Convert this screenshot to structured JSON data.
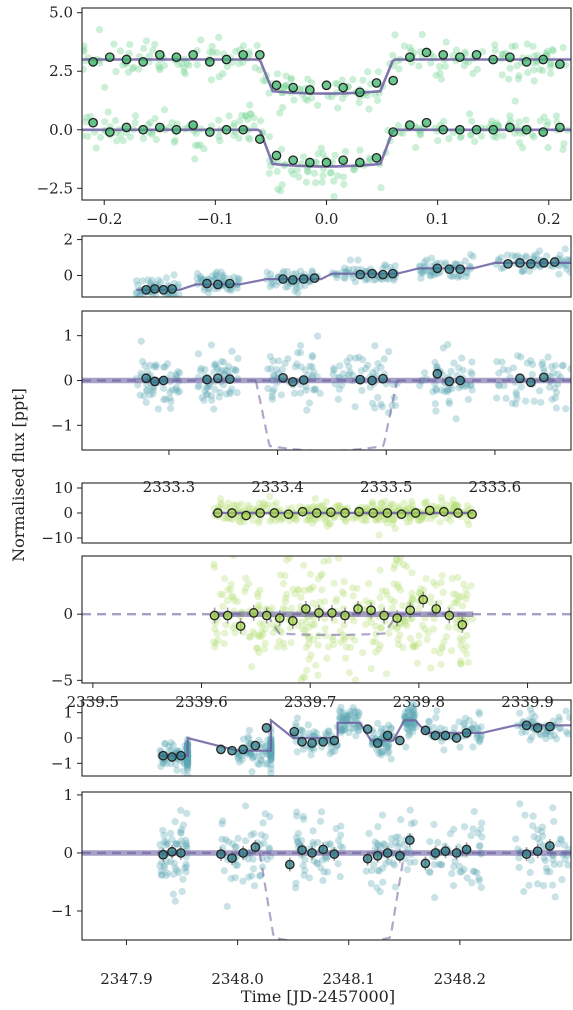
{
  "labels": {
    "ylabel": "Normalised flux [ppt]",
    "xlabel": "Time [JD-2457000]"
  },
  "colors": {
    "green_pts": "#7fd69a",
    "teal_pts": "#5ba7b4",
    "lime_pts": "#b8e07a",
    "model": "#6b5fa0",
    "binned_edge": "#222222",
    "green_binned": "#3cb46c",
    "teal_binned": "#2f7c88",
    "lime_binned": "#a6d64c"
  },
  "chart_data": [
    {
      "type": "scatter",
      "panel": "phase-folded",
      "xlim": [
        -0.22,
        0.22
      ],
      "ylim": [
        -3.0,
        5.2
      ],
      "xticks": [
        "−0.2",
        "−0.1",
        "0.0",
        "0.1",
        "0.2"
      ],
      "xtick_values": [
        -0.2,
        -0.1,
        0.0,
        0.1,
        0.2
      ],
      "yticks": [
        "−2.5",
        "0.0",
        "2.5",
        "5.0"
      ],
      "ytick_values": [
        -2.5,
        0.0,
        2.5,
        5.0
      ],
      "series": [
        {
          "offset": 3.0,
          "depth": 1.3,
          "transit_ingress": -0.06,
          "transit_egress": 0.06,
          "binned_x": [
            -0.21,
            -0.195,
            -0.18,
            -0.165,
            -0.15,
            -0.135,
            -0.12,
            -0.105,
            -0.09,
            -0.075,
            -0.06,
            -0.045,
            -0.03,
            -0.015,
            0.0,
            0.015,
            0.03,
            0.045,
            0.06,
            0.075,
            0.09,
            0.105,
            0.12,
            0.135,
            0.15,
            0.165,
            0.18,
            0.195,
            0.21
          ],
          "binned_y": [
            2.9,
            3.1,
            3.0,
            2.9,
            3.2,
            3.1,
            3.2,
            2.9,
            3.0,
            3.2,
            3.2,
            1.9,
            1.8,
            1.7,
            1.9,
            1.8,
            1.6,
            2.0,
            2.1,
            3.1,
            3.3,
            3.2,
            3.1,
            3.2,
            3.0,
            3.1,
            2.9,
            3.0,
            2.8
          ]
        },
        {
          "offset": 0.0,
          "depth": 1.4,
          "transit_ingress": -0.06,
          "transit_egress": 0.06,
          "binned_x": [
            -0.21,
            -0.195,
            -0.18,
            -0.165,
            -0.15,
            -0.135,
            -0.12,
            -0.105,
            -0.09,
            -0.075,
            -0.06,
            -0.045,
            -0.03,
            -0.015,
            0.0,
            0.015,
            0.03,
            0.045,
            0.06,
            0.075,
            0.09,
            0.105,
            0.12,
            0.135,
            0.15,
            0.165,
            0.18,
            0.195,
            0.21
          ],
          "binned_y": [
            0.3,
            -0.1,
            0.1,
            0.0,
            0.1,
            0.0,
            0.2,
            -0.1,
            0.0,
            0.0,
            -0.4,
            -1.1,
            -1.3,
            -1.4,
            -1.4,
            -1.3,
            -1.4,
            -1.2,
            -0.1,
            0.2,
            0.3,
            0.0,
            0.0,
            0.0,
            0.0,
            0.1,
            0.0,
            -0.1,
            0.1
          ]
        }
      ]
    },
    {
      "type": "scatter",
      "panel": "tess-1-trend",
      "xlim": [
        2333.22,
        2333.67
      ],
      "ylim": [
        -1.2,
        2.2
      ],
      "yticks": [
        "0",
        "2"
      ],
      "ytick_values": [
        0,
        2
      ],
      "segments": [
        [
          2333.27,
          2333.31,
          -0.8
        ],
        [
          2333.325,
          2333.365,
          -0.5
        ],
        [
          2333.39,
          2333.44,
          -0.2
        ],
        [
          2333.45,
          2333.51,
          0.1
        ],
        [
          2333.53,
          2333.58,
          0.4
        ],
        [
          2333.6,
          2333.67,
          0.7
        ]
      ],
      "binned_x": [
        2333.279,
        2333.287,
        2333.295,
        2333.303,
        2333.335,
        2333.345,
        2333.356,
        2333.405,
        2333.414,
        2333.424,
        2333.434,
        2333.476,
        2333.487,
        2333.497,
        2333.506,
        2333.547,
        2333.558,
        2333.568,
        2333.612,
        2333.623,
        2333.633,
        2333.645,
        2333.655
      ],
      "binned_y": [
        -0.8,
        -0.75,
        -0.8,
        -0.75,
        -0.45,
        -0.5,
        -0.45,
        -0.2,
        -0.25,
        -0.2,
        -0.15,
        0.05,
        0.1,
        0.05,
        0.1,
        0.4,
        0.35,
        0.35,
        0.65,
        0.7,
        0.65,
        0.7,
        0.75
      ]
    },
    {
      "type": "scatter",
      "panel": "tess-1-detrended",
      "xlim": [
        2333.22,
        2333.67
      ],
      "ylim": [
        -1.55,
        1.55
      ],
      "xticks": [
        "2333.3",
        "2333.4",
        "2333.5",
        "2333.6"
      ],
      "xtick_values": [
        2333.3,
        2333.4,
        2333.5,
        2333.6
      ],
      "yticks": [
        "−1",
        "0",
        "1"
      ],
      "ytick_values": [
        -1,
        0,
        1
      ],
      "transit": {
        "ingress": 2333.38,
        "egress": 2333.51,
        "depth": 1.4
      },
      "clusters": [
        [
          2333.27,
          2333.31
        ],
        [
          2333.325,
          2333.365
        ],
        [
          2333.39,
          2333.44
        ],
        [
          2333.45,
          2333.51
        ],
        [
          2333.53,
          2333.58
        ],
        [
          2333.6,
          2333.67
        ]
      ],
      "binned_x": [
        2333.279,
        2333.287,
        2333.295,
        2333.335,
        2333.345,
        2333.356,
        2333.405,
        2333.414,
        2333.424,
        2333.476,
        2333.487,
        2333.497,
        2333.547,
        2333.558,
        2333.568,
        2333.623,
        2333.633,
        2333.645
      ],
      "binned_y": [
        0.05,
        -0.02,
        0.0,
        0.02,
        0.05,
        0.03,
        0.06,
        -0.03,
        0.01,
        0.02,
        0.0,
        0.04,
        0.15,
        -0.02,
        0.0,
        0.05,
        -0.04,
        0.07
      ]
    },
    {
      "type": "scatter",
      "panel": "ground-trend",
      "xlim": [
        2339.49,
        2339.94
      ],
      "ylim": [
        -12,
        12
      ],
      "yticks": [
        "10",
        "0",
        "−10"
      ],
      "ytick_values": [
        10,
        0,
        -10
      ],
      "range": [
        2339.61,
        2339.85
      ],
      "binned_x": [
        2339.615,
        2339.628,
        2339.641,
        2339.654,
        2339.667,
        2339.68,
        2339.693,
        2339.706,
        2339.719,
        2339.732,
        2339.745,
        2339.758,
        2339.771,
        2339.784,
        2339.797,
        2339.81,
        2339.823,
        2339.836,
        2339.849
      ],
      "binned_y": [
        0,
        0,
        -1,
        0,
        0,
        -0.5,
        0.5,
        0,
        0.3,
        0,
        0.5,
        0,
        0,
        -0.5,
        0,
        1,
        0.5,
        0,
        -0.5
      ]
    },
    {
      "type": "scatter",
      "panel": "ground-detrended",
      "xlim": [
        2339.49,
        2339.94
      ],
      "ylim": [
        -5.2,
        4.4
      ],
      "xticks": [
        "2339.5",
        "2339.6",
        "2339.7",
        "2339.8",
        "2339.9"
      ],
      "xtick_values": [
        2339.5,
        2339.6,
        2339.7,
        2339.8,
        2339.9
      ],
      "yticks": [
        "0",
        "−5"
      ],
      "ytick_values": [
        0,
        -5
      ],
      "transit": {
        "ingress": 2339.66,
        "egress": 2339.78,
        "depth": 1.4
      },
      "range": [
        2339.61,
        2339.85
      ],
      "binned_x": [
        2339.612,
        2339.624,
        2339.636,
        2339.648,
        2339.66,
        2339.672,
        2339.684,
        2339.696,
        2339.708,
        2339.72,
        2339.732,
        2339.744,
        2339.756,
        2339.768,
        2339.78,
        2339.792,
        2339.804,
        2339.816,
        2339.828,
        2339.84
      ],
      "binned_y": [
        -0.1,
        -0.1,
        -0.9,
        0.1,
        -0.1,
        -0.3,
        -0.5,
        0.4,
        0.1,
        0.1,
        -0.1,
        0.4,
        0.3,
        -0.1,
        -0.3,
        0.3,
        1.1,
        0.4,
        -0.1,
        -0.8
      ]
    },
    {
      "type": "scatter",
      "panel": "tess-2-trend",
      "xlim": [
        2347.86,
        2348.3
      ],
      "ylim": [
        -1.5,
        1.5
      ],
      "yticks": [
        "1",
        "0",
        "−1"
      ],
      "ytick_values": [
        1,
        0,
        -1
      ],
      "segments": [
        [
          2347.93,
          2347.955,
          -0.7
        ],
        [
          2347.955,
          2347.955,
          0.0
        ],
        [
          2348.0,
          2348.03,
          -0.5
        ],
        [
          2348.03,
          2348.03,
          0.7
        ],
        [
          2348.05,
          2348.09,
          0.0
        ],
        [
          2348.09,
          2348.11,
          0.6
        ],
        [
          2348.12,
          2348.14,
          -0.1
        ],
        [
          2348.15,
          2348.16,
          0.7
        ],
        [
          2348.17,
          2348.22,
          0.2
        ],
        [
          2348.25,
          2348.3,
          0.5
        ]
      ],
      "binned_x": [
        2347.933,
        2347.941,
        2347.949,
        2347.985,
        2347.995,
        2348.005,
        2348.016,
        2348.026,
        2348.051,
        2348.058,
        2348.067,
        2348.077,
        2348.087,
        2348.117,
        2348.126,
        2348.135,
        2348.146,
        2348.169,
        2348.178,
        2348.187,
        2348.197,
        2348.206,
        2348.26,
        2348.27,
        2348.281
      ],
      "binned_y": [
        -0.7,
        -0.75,
        -0.7,
        -0.45,
        -0.5,
        -0.45,
        -0.3,
        0.4,
        0.25,
        -0.15,
        -0.2,
        -0.15,
        -0.1,
        0.35,
        -0.2,
        0.1,
        -0.1,
        0.3,
        0.1,
        0.1,
        0.0,
        0.2,
        0.5,
        0.4,
        0.45
      ]
    },
    {
      "type": "scatter",
      "panel": "tess-2-detrended",
      "xlim": [
        2347.86,
        2348.3
      ],
      "ylim": [
        -1.5,
        1.05
      ],
      "xticks": [
        "2347.9",
        "2348.0",
        "2348.1",
        "2348.2"
      ],
      "xtick_values": [
        2347.9,
        2348.0,
        2348.1,
        2348.2
      ],
      "yticks": [
        "1",
        "0",
        "−1"
      ],
      "ytick_values": [
        1,
        0,
        -1
      ],
      "transit": {
        "ingress": 2348.02,
        "egress": 2348.15,
        "depth": 1.4
      },
      "clusters": [
        [
          2347.93,
          2347.955
        ],
        [
          2347.985,
          2348.03
        ],
        [
          2348.05,
          2348.095
        ],
        [
          2348.115,
          2348.16
        ],
        [
          2348.17,
          2348.22
        ],
        [
          2348.25,
          2348.3
        ]
      ],
      "binned_x": [
        2347.933,
        2347.941,
        2347.949,
        2347.985,
        2347.995,
        2348.005,
        2348.016,
        2348.047,
        2348.058,
        2348.067,
        2348.077,
        2348.087,
        2348.117,
        2348.126,
        2348.135,
        2348.146,
        2348.155,
        2348.169,
        2348.178,
        2348.187,
        2348.197,
        2348.206,
        2348.26,
        2348.27,
        2348.281
      ],
      "binned_y": [
        -0.03,
        0.02,
        0.0,
        -0.02,
        -0.09,
        0.0,
        0.1,
        -0.2,
        0.05,
        0.0,
        0.06,
        -0.02,
        -0.1,
        -0.05,
        0.0,
        -0.05,
        0.22,
        -0.18,
        0.0,
        0.03,
        0.0,
        0.06,
        -0.02,
        0.03,
        0.12
      ]
    }
  ]
}
